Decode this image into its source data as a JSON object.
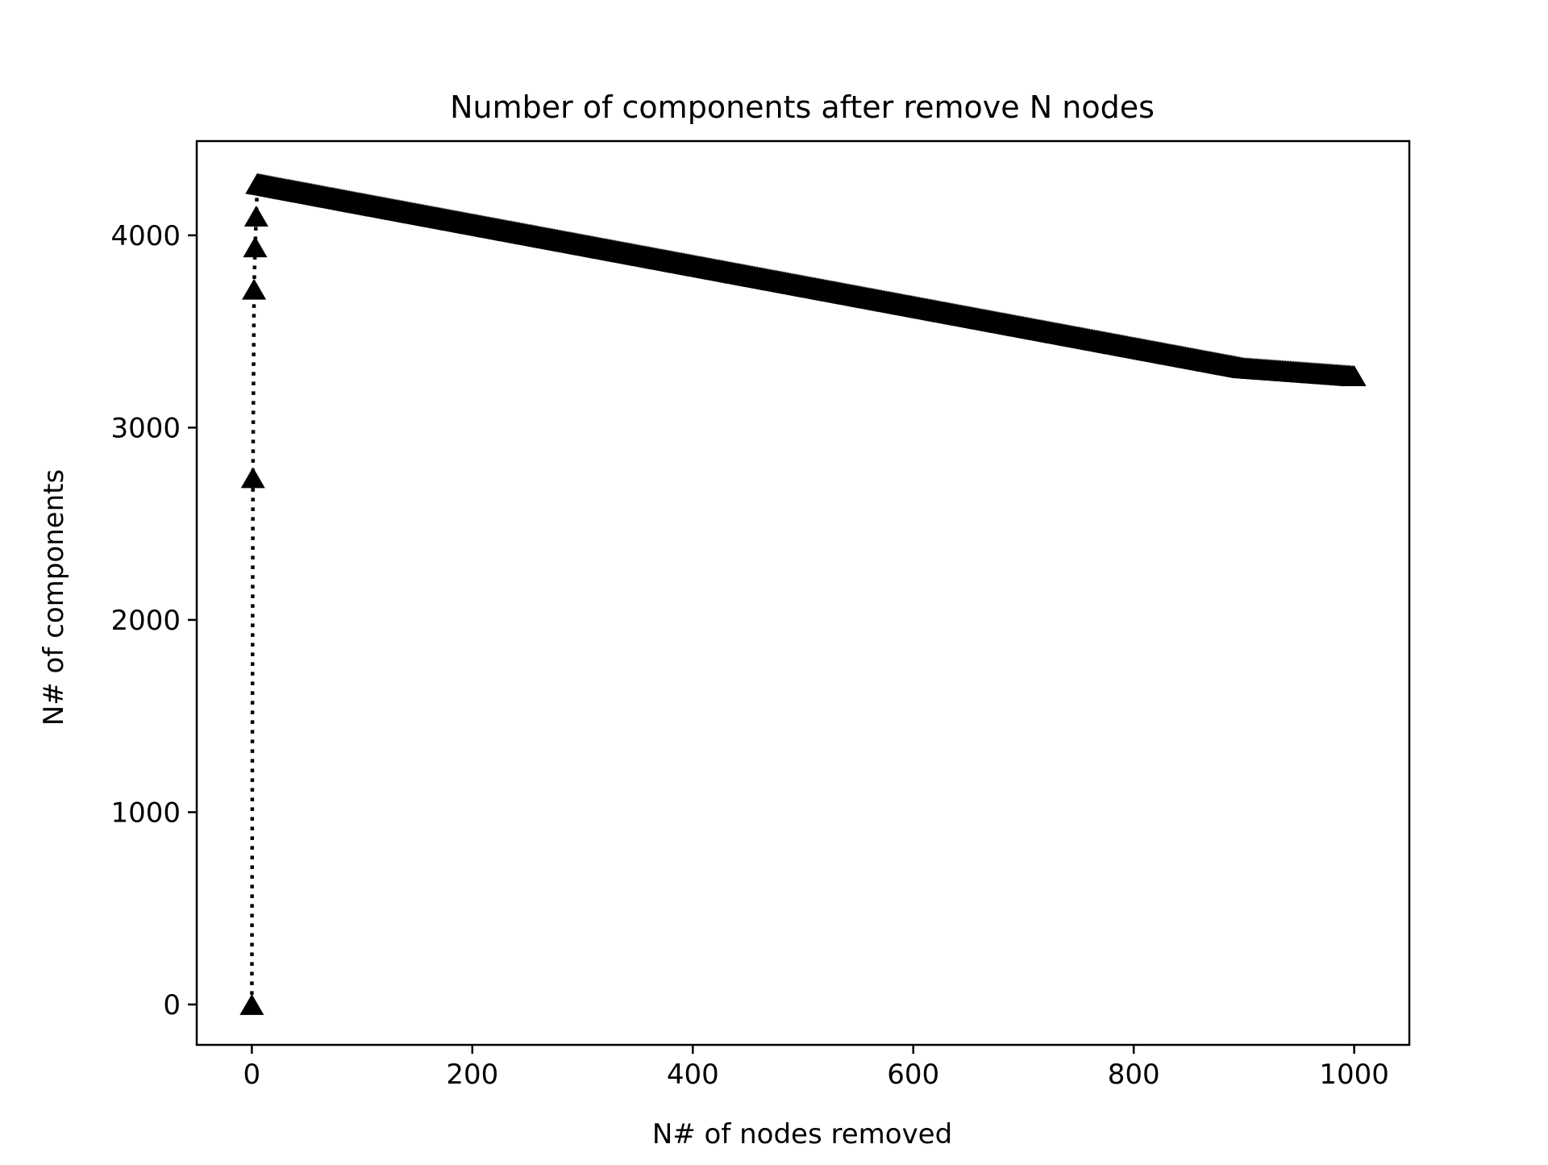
{
  "chart_data": {
    "type": "line",
    "title": "Number of components after remove N nodes",
    "xlabel": "N# of nodes removed",
    "ylabel": "N# of components",
    "xlim": [
      -50,
      1050
    ],
    "ylim": [
      -210,
      4490
    ],
    "xticks": [
      0,
      200,
      400,
      600,
      800,
      1000
    ],
    "xtick_labels": [
      "0",
      "200",
      "400",
      "600",
      "800",
      "1000"
    ],
    "yticks": [
      0,
      1000,
      2000,
      3000,
      4000
    ],
    "ytick_labels": [
      "0",
      "1000",
      "2000",
      "3000",
      "4000"
    ],
    "grid": false,
    "line_style": "dotted",
    "marker": "triangle-up",
    "color": "#000000",
    "series": [
      {
        "x": [
          0,
          1,
          2,
          3,
          4,
          5,
          10,
          20,
          50,
          100,
          200,
          300,
          400,
          500,
          600,
          700,
          800,
          900,
          1000
        ],
        "y": [
          0,
          2740,
          3720,
          3940,
          4100,
          4270,
          4265,
          4254,
          4222,
          4168,
          4061,
          3954,
          3847,
          3740,
          3633,
          3526,
          3419,
          3312,
          3270
        ]
      }
    ]
  }
}
